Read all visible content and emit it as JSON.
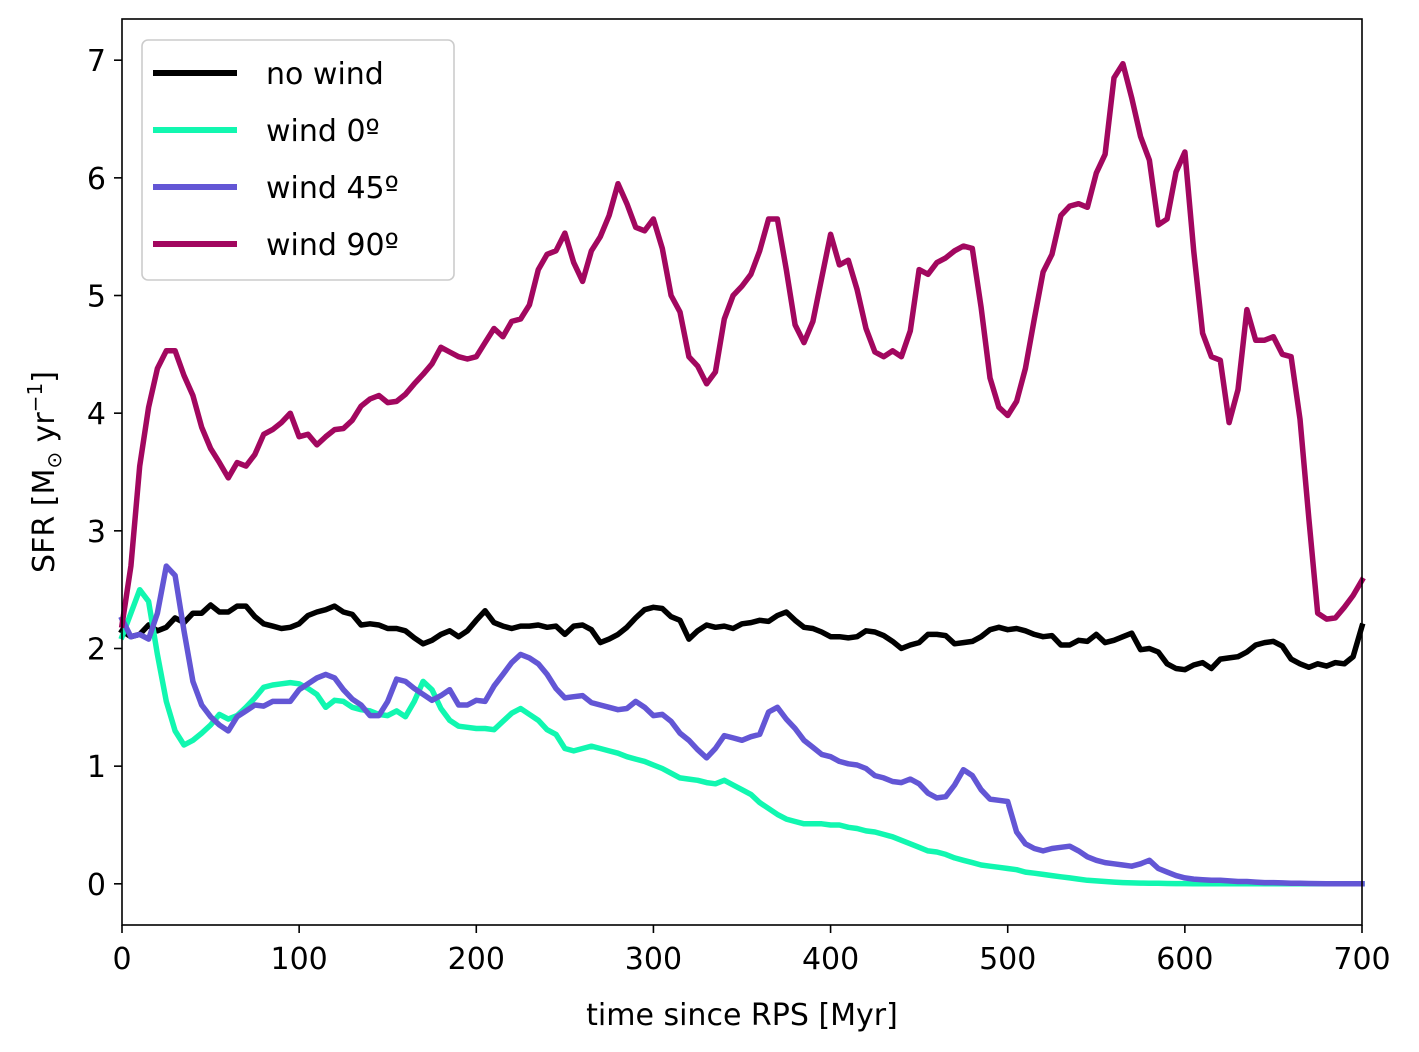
{
  "chart_data": {
    "type": "line",
    "xlabel": "time since RPS [Myr]",
    "ylabel_parts": {
      "main": "SFR [M",
      "sub": "⊙",
      "mid": " yr",
      "sup": "−1",
      "end": "]"
    },
    "xlim": [
      0,
      700
    ],
    "ylim": [
      -0.35,
      7.35
    ],
    "xticks": [
      0,
      100,
      200,
      300,
      400,
      500,
      600,
      700
    ],
    "yticks": [
      0,
      1,
      2,
      3,
      4,
      5,
      6,
      7
    ],
    "grid": false,
    "legend_position": "top-left",
    "series": [
      {
        "name": "no wind",
        "color": "#000000",
        "x": [
          0,
          5,
          10,
          15,
          20,
          25,
          30,
          35,
          40,
          45,
          50,
          55,
          60,
          65,
          70,
          75,
          80,
          85,
          90,
          95,
          100,
          105,
          110,
          115,
          120,
          125,
          130,
          135,
          140,
          145,
          150,
          155,
          160,
          165,
          170,
          175,
          180,
          185,
          190,
          195,
          200,
          205,
          210,
          215,
          220,
          225,
          230,
          235,
          240,
          245,
          250,
          255,
          260,
          265,
          270,
          275,
          280,
          285,
          290,
          295,
          300,
          305,
          310,
          315,
          320,
          325,
          330,
          335,
          340,
          345,
          350,
          355,
          360,
          365,
          370,
          375,
          380,
          385,
          390,
          395,
          400,
          405,
          410,
          415,
          420,
          425,
          430,
          435,
          440,
          445,
          450,
          455,
          460,
          465,
          470,
          475,
          480,
          485,
          490,
          495,
          500,
          505,
          510,
          515,
          520,
          525,
          530,
          535,
          540,
          545,
          550,
          555,
          560,
          565,
          570,
          575,
          580,
          585,
          590,
          595,
          600,
          605,
          610,
          615,
          620,
          625,
          630,
          635,
          640,
          645,
          650,
          655,
          660,
          665,
          670,
          675,
          680,
          685,
          690,
          695,
          700
        ],
        "y": [
          2.15,
          2.1,
          2.12,
          2.2,
          2.15,
          2.18,
          2.26,
          2.22,
          2.3,
          2.3,
          2.37,
          2.31,
          2.31,
          2.36,
          2.36,
          2.27,
          2.21,
          2.19,
          2.17,
          2.18,
          2.21,
          2.28,
          2.31,
          2.33,
          2.36,
          2.31,
          2.29,
          2.2,
          2.21,
          2.2,
          2.17,
          2.17,
          2.15,
          2.09,
          2.04,
          2.07,
          2.12,
          2.15,
          2.1,
          2.15,
          2.24,
          2.32,
          2.22,
          2.19,
          2.17,
          2.19,
          2.19,
          2.2,
          2.18,
          2.19,
          2.12,
          2.19,
          2.2,
          2.16,
          2.05,
          2.08,
          2.12,
          2.18,
          2.26,
          2.33,
          2.35,
          2.34,
          2.27,
          2.24,
          2.08,
          2.15,
          2.2,
          2.18,
          2.19,
          2.17,
          2.21,
          2.22,
          2.24,
          2.23,
          2.28,
          2.31,
          2.24,
          2.18,
          2.17,
          2.14,
          2.1,
          2.1,
          2.09,
          2.1,
          2.15,
          2.14,
          2.11,
          2.06,
          2.0,
          2.03,
          2.05,
          2.12,
          2.12,
          2.11,
          2.04,
          2.05,
          2.06,
          2.1,
          2.16,
          2.18,
          2.16,
          2.17,
          2.15,
          2.12,
          2.1,
          2.11,
          2.03,
          2.03,
          2.07,
          2.06,
          2.12,
          2.05,
          2.07,
          2.1,
          2.13,
          1.99,
          2.0,
          1.97,
          1.87,
          1.83,
          1.82,
          1.86,
          1.88,
          1.83,
          1.91,
          1.92,
          1.93,
          1.97,
          2.03,
          2.05,
          2.06,
          2.02,
          1.91,
          1.87,
          1.84,
          1.87,
          1.85,
          1.88,
          1.87,
          1.93,
          2.19
        ]
      },
      {
        "name": "wind 0º",
        "color": "#11f7b0",
        "x": [
          0,
          5,
          10,
          15,
          20,
          25,
          30,
          35,
          40,
          45,
          50,
          55,
          60,
          65,
          70,
          75,
          80,
          85,
          90,
          95,
          100,
          105,
          110,
          115,
          120,
          125,
          130,
          135,
          140,
          145,
          150,
          155,
          160,
          165,
          170,
          175,
          180,
          185,
          190,
          195,
          200,
          205,
          210,
          215,
          220,
          225,
          230,
          235,
          240,
          245,
          250,
          255,
          260,
          265,
          270,
          275,
          280,
          285,
          290,
          295,
          300,
          305,
          310,
          315,
          320,
          325,
          330,
          335,
          340,
          345,
          350,
          355,
          360,
          365,
          370,
          375,
          380,
          385,
          390,
          395,
          400,
          405,
          410,
          415,
          420,
          425,
          430,
          435,
          440,
          445,
          450,
          455,
          460,
          465,
          470,
          475,
          480,
          485,
          490,
          495,
          500,
          505,
          510,
          515,
          520,
          525,
          530,
          535,
          540,
          545,
          550,
          555,
          560,
          565,
          570,
          575,
          580,
          585,
          590,
          595,
          600,
          605,
          610,
          615,
          620,
          625,
          630,
          635,
          640,
          645,
          650,
          655,
          660,
          665,
          670,
          675,
          680,
          685,
          690,
          695,
          700
        ],
        "y": [
          2.1,
          2.3,
          2.5,
          2.4,
          1.95,
          1.55,
          1.3,
          1.18,
          1.22,
          1.28,
          1.35,
          1.44,
          1.4,
          1.43,
          1.5,
          1.58,
          1.67,
          1.69,
          1.7,
          1.71,
          1.7,
          1.66,
          1.61,
          1.5,
          1.56,
          1.55,
          1.5,
          1.48,
          1.47,
          1.44,
          1.43,
          1.47,
          1.42,
          1.55,
          1.72,
          1.65,
          1.49,
          1.39,
          1.34,
          1.33,
          1.32,
          1.32,
          1.31,
          1.38,
          1.45,
          1.49,
          1.44,
          1.39,
          1.31,
          1.27,
          1.15,
          1.13,
          1.15,
          1.17,
          1.15,
          1.13,
          1.11,
          1.08,
          1.06,
          1.04,
          1.01,
          0.98,
          0.94,
          0.9,
          0.89,
          0.88,
          0.86,
          0.85,
          0.88,
          0.84,
          0.8,
          0.76,
          0.69,
          0.64,
          0.59,
          0.55,
          0.53,
          0.51,
          0.51,
          0.51,
          0.5,
          0.5,
          0.48,
          0.47,
          0.45,
          0.44,
          0.42,
          0.4,
          0.37,
          0.34,
          0.31,
          0.28,
          0.27,
          0.25,
          0.22,
          0.2,
          0.18,
          0.16,
          0.15,
          0.14,
          0.13,
          0.12,
          0.1,
          0.09,
          0.08,
          0.07,
          0.06,
          0.05,
          0.04,
          0.03,
          0.025,
          0.02,
          0.015,
          0.01,
          0.008,
          0.006,
          0.005,
          0.004,
          0.003,
          0.002,
          0.002,
          0.001,
          0.001,
          0.001,
          0.001,
          0,
          0,
          0,
          0,
          0,
          0,
          0,
          0,
          0,
          0,
          0,
          0,
          0,
          0,
          0,
          0
        ]
      },
      {
        "name": "wind 45º",
        "color": "#6356d5",
        "x": [
          0,
          5,
          10,
          15,
          20,
          25,
          30,
          35,
          40,
          45,
          50,
          55,
          60,
          65,
          70,
          75,
          80,
          85,
          90,
          95,
          100,
          105,
          110,
          115,
          120,
          125,
          130,
          135,
          140,
          145,
          150,
          155,
          160,
          165,
          170,
          175,
          180,
          185,
          190,
          195,
          200,
          205,
          210,
          215,
          220,
          225,
          230,
          235,
          240,
          245,
          250,
          255,
          260,
          265,
          270,
          275,
          280,
          285,
          290,
          295,
          300,
          305,
          310,
          315,
          320,
          325,
          330,
          335,
          340,
          345,
          350,
          355,
          360,
          365,
          370,
          375,
          380,
          385,
          390,
          395,
          400,
          405,
          410,
          415,
          420,
          425,
          430,
          435,
          440,
          445,
          450,
          455,
          460,
          465,
          470,
          475,
          480,
          485,
          490,
          495,
          500,
          505,
          510,
          515,
          520,
          525,
          530,
          535,
          540,
          545,
          550,
          555,
          560,
          565,
          570,
          575,
          580,
          585,
          590,
          595,
          600,
          605,
          610,
          615,
          620,
          625,
          630,
          635,
          640,
          645,
          650,
          655,
          660,
          665,
          670,
          675,
          680,
          685,
          690,
          695,
          700
        ],
        "y": [
          2.25,
          2.1,
          2.12,
          2.08,
          2.3,
          2.7,
          2.62,
          2.15,
          1.72,
          1.52,
          1.42,
          1.35,
          1.3,
          1.42,
          1.47,
          1.52,
          1.51,
          1.55,
          1.55,
          1.55,
          1.65,
          1.7,
          1.75,
          1.78,
          1.75,
          1.65,
          1.57,
          1.52,
          1.43,
          1.43,
          1.55,
          1.74,
          1.72,
          1.66,
          1.61,
          1.56,
          1.6,
          1.65,
          1.52,
          1.52,
          1.56,
          1.55,
          1.68,
          1.78,
          1.88,
          1.95,
          1.92,
          1.87,
          1.78,
          1.66,
          1.58,
          1.59,
          1.6,
          1.54,
          1.52,
          1.5,
          1.48,
          1.49,
          1.55,
          1.5,
          1.43,
          1.44,
          1.38,
          1.28,
          1.22,
          1.14,
          1.07,
          1.15,
          1.26,
          1.24,
          1.22,
          1.25,
          1.27,
          1.46,
          1.5,
          1.4,
          1.32,
          1.22,
          1.16,
          1.1,
          1.08,
          1.04,
          1.02,
          1.01,
          0.98,
          0.92,
          0.9,
          0.87,
          0.86,
          0.89,
          0.85,
          0.77,
          0.73,
          0.74,
          0.84,
          0.97,
          0.92,
          0.8,
          0.72,
          0.71,
          0.7,
          0.44,
          0.34,
          0.3,
          0.28,
          0.3,
          0.31,
          0.32,
          0.28,
          0.23,
          0.2,
          0.18,
          0.17,
          0.16,
          0.15,
          0.17,
          0.2,
          0.13,
          0.1,
          0.07,
          0.05,
          0.04,
          0.035,
          0.03,
          0.03,
          0.025,
          0.02,
          0.02,
          0.015,
          0.01,
          0.01,
          0.008,
          0.005,
          0.004,
          0.003,
          0.002,
          0.001,
          0,
          0,
          0,
          0
        ]
      },
      {
        "name": "wind 90º",
        "color": "#a2075f",
        "x": [
          0,
          5,
          10,
          15,
          20,
          25,
          30,
          35,
          40,
          45,
          50,
          55,
          60,
          65,
          70,
          75,
          80,
          85,
          90,
          95,
          100,
          105,
          110,
          115,
          120,
          125,
          130,
          135,
          140,
          145,
          150,
          155,
          160,
          165,
          170,
          175,
          180,
          185,
          190,
          195,
          200,
          205,
          210,
          215,
          220,
          225,
          230,
          235,
          240,
          245,
          250,
          255,
          260,
          265,
          270,
          275,
          280,
          285,
          290,
          295,
          300,
          305,
          310,
          315,
          320,
          325,
          330,
          335,
          340,
          345,
          350,
          355,
          360,
          365,
          370,
          375,
          380,
          385,
          390,
          395,
          400,
          405,
          410,
          415,
          420,
          425,
          430,
          435,
          440,
          445,
          450,
          455,
          460,
          465,
          470,
          475,
          480,
          485,
          490,
          495,
          500,
          505,
          510,
          515,
          520,
          525,
          530,
          535,
          540,
          545,
          550,
          555,
          560,
          565,
          570,
          575,
          580,
          585,
          590,
          595,
          600,
          605,
          610,
          615,
          620,
          625,
          630,
          635,
          640,
          645,
          650,
          655,
          660,
          665,
          670,
          675,
          680,
          685,
          690,
          695,
          700
        ],
        "y": [
          2.2,
          2.7,
          3.55,
          4.05,
          4.38,
          4.53,
          4.53,
          4.32,
          4.15,
          3.88,
          3.7,
          3.58,
          3.45,
          3.58,
          3.55,
          3.65,
          3.82,
          3.86,
          3.92,
          4.0,
          3.8,
          3.82,
          3.73,
          3.8,
          3.86,
          3.87,
          3.94,
          4.06,
          4.12,
          4.15,
          4.09,
          4.1,
          4.16,
          4.25,
          4.33,
          4.42,
          4.56,
          4.52,
          4.48,
          4.46,
          4.48,
          4.6,
          4.72,
          4.65,
          4.78,
          4.8,
          4.92,
          5.22,
          5.35,
          5.38,
          5.53,
          5.28,
          5.12,
          5.38,
          5.5,
          5.68,
          5.95,
          5.78,
          5.58,
          5.55,
          5.65,
          5.4,
          5.0,
          4.86,
          4.48,
          4.4,
          4.25,
          4.35,
          4.8,
          5.0,
          5.08,
          5.18,
          5.38,
          5.65,
          5.65,
          5.22,
          4.75,
          4.6,
          4.78,
          5.15,
          5.52,
          5.26,
          5.3,
          5.05,
          4.72,
          4.52,
          4.48,
          4.53,
          4.48,
          4.7,
          5.22,
          5.18,
          5.28,
          5.32,
          5.38,
          5.42,
          5.4,
          4.9,
          4.3,
          4.05,
          3.98,
          4.1,
          4.38,
          4.8,
          5.2,
          5.35,
          5.68,
          5.76,
          5.78,
          5.75,
          6.04,
          6.2,
          6.85,
          6.97,
          6.68,
          6.35,
          6.15,
          5.6,
          5.65,
          6.05,
          6.22,
          5.38,
          4.68,
          4.48,
          4.45,
          3.92,
          4.2,
          4.88,
          4.62,
          4.62,
          4.65,
          4.5,
          4.48,
          3.95,
          3.1,
          2.3,
          2.25,
          2.26,
          2.35,
          2.45,
          2.58
        ]
      }
    ]
  }
}
